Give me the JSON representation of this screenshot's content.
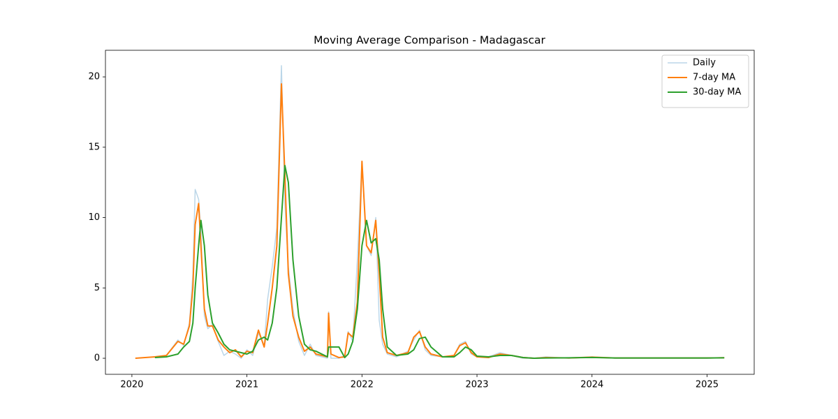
{
  "chart_data": {
    "type": "line",
    "title": "Moving Average Comparison - Madagascar",
    "x": [
      2020.03,
      2020.2,
      2020.3,
      2020.4,
      2020.45,
      2020.5,
      2020.53,
      2020.55,
      2020.58,
      2020.6,
      2020.63,
      2020.66,
      2020.7,
      2020.75,
      2020.8,
      2020.85,
      2020.9,
      2020.95,
      2021.0,
      2021.05,
      2021.1,
      2021.15,
      2021.18,
      2021.22,
      2021.26,
      2021.3,
      2021.33,
      2021.36,
      2021.4,
      2021.45,
      2021.5,
      2021.55,
      2021.6,
      2021.7,
      2021.71,
      2021.73,
      2021.8,
      2021.85,
      2021.88,
      2021.92,
      2021.96,
      2022.0,
      2022.04,
      2022.08,
      2022.12,
      2022.15,
      2022.18,
      2022.22,
      2022.3,
      2022.4,
      2022.45,
      2022.5,
      2022.55,
      2022.6,
      2022.7,
      2022.8,
      2022.85,
      2022.9,
      2022.95,
      2023.0,
      2023.1,
      2023.2,
      2023.3,
      2023.4,
      2023.5,
      2023.6,
      2023.8,
      2024.0,
      2024.2,
      2024.5,
      2025.0,
      2025.15
    ],
    "series": [
      {
        "name": "Daily",
        "color": "#1f77b4",
        "opacity": 0.3,
        "width": 1.5,
        "values": [
          0,
          0.1,
          0.2,
          1.3,
          0.9,
          2.5,
          6,
          12,
          11.3,
          9,
          3,
          2.1,
          2.4,
          1.2,
          0.2,
          0.5,
          0.3,
          0,
          0.6,
          0.2,
          1.8,
          0.9,
          4.2,
          6.5,
          9.3,
          20.8,
          11,
          6.5,
          3.5,
          1.2,
          0.2,
          1.0,
          0.2,
          0,
          3.3,
          0,
          0,
          0.2,
          1.9,
          1.2,
          7,
          14,
          8,
          7.3,
          10,
          2.7,
          1.0,
          0.3,
          0.1,
          0.5,
          1.3,
          2.0,
          0.6,
          0.2,
          0.1,
          0.2,
          1.0,
          1.2,
          0.3,
          0.1,
          0.1,
          0.4,
          0.2,
          0,
          0,
          0.1,
          0,
          0.1,
          0,
          0,
          0,
          0.05
        ]
      },
      {
        "name": "7-day MA",
        "color": "#ff7f0e",
        "opacity": 1,
        "width": 2,
        "values": [
          0,
          0.1,
          0.2,
          1.2,
          1.0,
          2.3,
          5,
          9.5,
          11,
          8,
          3.5,
          2.3,
          2.3,
          1.3,
          0.8,
          0.4,
          0.6,
          0.1,
          0.5,
          0.4,
          2.0,
          0.8,
          2.5,
          5,
          8,
          19.5,
          13,
          6,
          3,
          1.5,
          0.5,
          0.8,
          0.3,
          0.1,
          3.2,
          0.3,
          0.05,
          0.1,
          1.8,
          1.5,
          4,
          14,
          8,
          7.5,
          9.8,
          6,
          1.5,
          0.4,
          0.2,
          0.4,
          1.5,
          1.9,
          0.8,
          0.3,
          0.1,
          0.2,
          0.9,
          1.1,
          0.4,
          0.1,
          0.05,
          0.3,
          0.2,
          0.05,
          0,
          0.05,
          0.02,
          0.08,
          0.02,
          0.02,
          0.02,
          0.04
        ]
      },
      {
        "name": "30-day MA",
        "color": "#2ca02c",
        "opacity": 1,
        "width": 2,
        "values": [
          null,
          0.05,
          0.1,
          0.3,
          0.8,
          1.2,
          2.5,
          5,
          8,
          9.8,
          8,
          4.5,
          2.5,
          1.8,
          1.0,
          0.6,
          0.5,
          0.4,
          0.3,
          0.5,
          1.3,
          1.5,
          1.3,
          2.5,
          5,
          10,
          13.7,
          12.5,
          7,
          3,
          1.0,
          0.6,
          0.5,
          0.1,
          0.8,
          0.8,
          0.8,
          0.05,
          0.3,
          1.2,
          3.5,
          8,
          9.8,
          8.2,
          8.5,
          7,
          3.5,
          0.8,
          0.2,
          0.3,
          0.6,
          1.4,
          1.5,
          0.8,
          0.1,
          0.1,
          0.4,
          0.8,
          0.6,
          0.15,
          0.1,
          0.2,
          0.2,
          0.05,
          0,
          0.02,
          0.03,
          0.06,
          0.02,
          0.02,
          0.02,
          0.03
        ]
      }
    ],
    "xlim": [
      2019.77,
      2025.41
    ],
    "xticks": [
      2020,
      2021,
      2022,
      2023,
      2024,
      2025
    ],
    "ylim": [
      -1.14,
      21.89
    ],
    "yticks": [
      0,
      5,
      10,
      15,
      20
    ],
    "grid": false,
    "legend": "upper right"
  }
}
